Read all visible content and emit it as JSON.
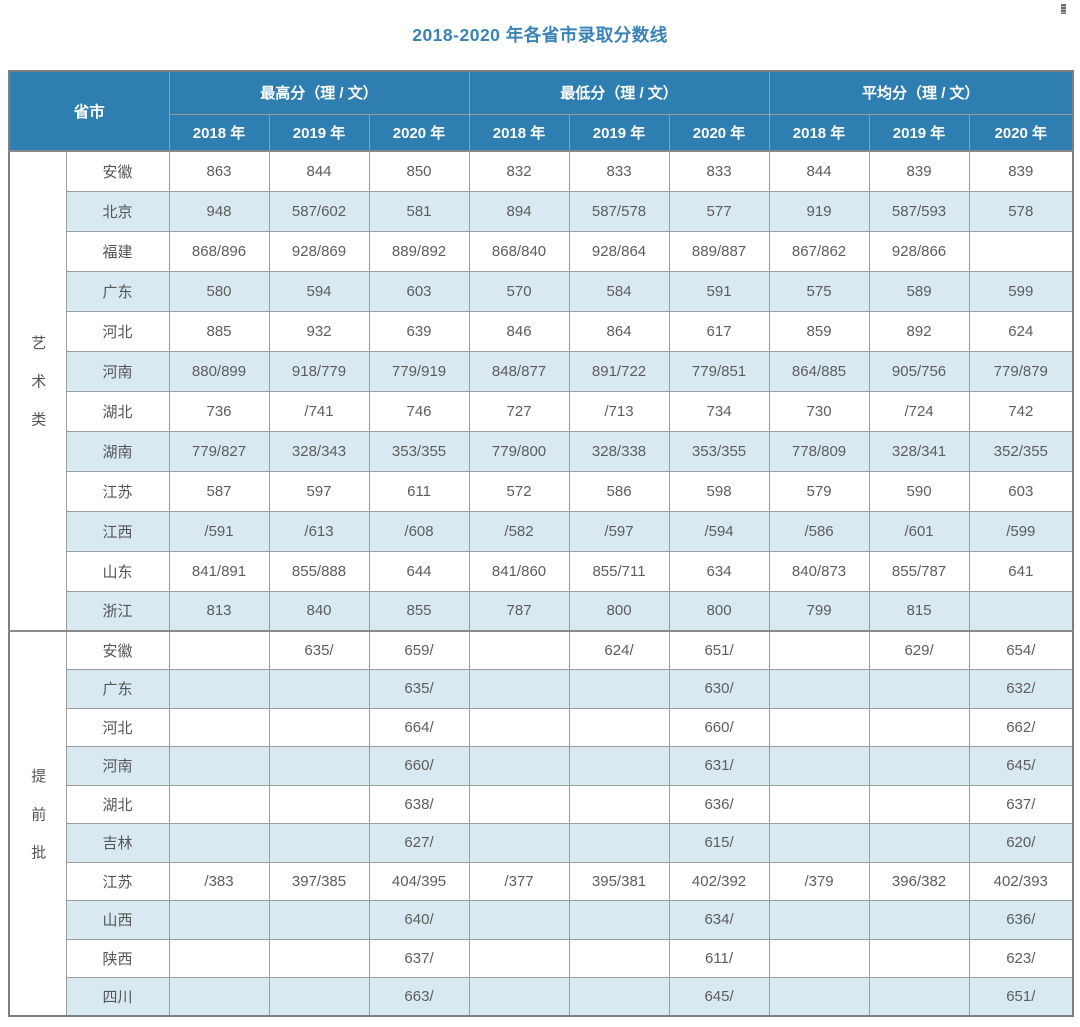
{
  "title": "2018-2020 年各省市录取分数线",
  "colors": {
    "header_bg": "#2e7eb1",
    "header_text": "#ffffff",
    "stripe_bg": "#d9e9f2",
    "grid_border": "#9c9c9c",
    "outer_border": "#7e7e7e",
    "title_text": "#3a83b6",
    "cell_text": "#5a5a5a"
  },
  "table": {
    "header": {
      "province_label": "省市",
      "groups": [
        {
          "label": "最高分（理 / 文）"
        },
        {
          "label": "最低分（理 / 文）"
        },
        {
          "label": "平均分（理 / 文）"
        }
      ],
      "years": [
        "2018 年",
        "2019 年",
        "2020 年"
      ]
    },
    "sections": [
      {
        "category": "艺术类",
        "rows": [
          {
            "province": "安徽",
            "values": [
              "863",
              "844",
              "850",
              "832",
              "833",
              "833",
              "844",
              "839",
              "839"
            ]
          },
          {
            "province": "北京",
            "values": [
              "948",
              "587/602",
              "581",
              "894",
              "587/578",
              "577",
              "919",
              "587/593",
              "578"
            ]
          },
          {
            "province": "福建",
            "values": [
              "868/896",
              "928/869",
              "889/892",
              "868/840",
              "928/864",
              "889/887",
              "867/862",
              "928/866",
              ""
            ]
          },
          {
            "province": "广东",
            "values": [
              "580",
              "594",
              "603",
              "570",
              "584",
              "591",
              "575",
              "589",
              "599"
            ]
          },
          {
            "province": "河北",
            "values": [
              "885",
              "932",
              "639",
              "846",
              "864",
              "617",
              "859",
              "892",
              "624"
            ]
          },
          {
            "province": "河南",
            "values": [
              "880/899",
              "918/779",
              "779/919",
              "848/877",
              "891/722",
              "779/851",
              "864/885",
              "905/756",
              "779/879"
            ]
          },
          {
            "province": "湖北",
            "values": [
              "736",
              "/741",
              "746",
              "727",
              "/713",
              "734",
              "730",
              "/724",
              "742"
            ]
          },
          {
            "province": "湖南",
            "values": [
              "779/827",
              "328/343",
              "353/355",
              "779/800",
              "328/338",
              "353/355",
              "778/809",
              "328/341",
              "352/355"
            ]
          },
          {
            "province": "江苏",
            "values": [
              "587",
              "597",
              "611",
              "572",
              "586",
              "598",
              "579",
              "590",
              "603"
            ]
          },
          {
            "province": "江西",
            "values": [
              "/591",
              "/613",
              "/608",
              "/582",
              "/597",
              "/594",
              "/586",
              "/601",
              "/599"
            ]
          },
          {
            "province": "山东",
            "values": [
              "841/891",
              "855/888",
              "644",
              "841/860",
              "855/711",
              "634",
              "840/873",
              "855/787",
              "641"
            ]
          },
          {
            "province": "浙江",
            "values": [
              "813",
              "840",
              "855",
              "787",
              "800",
              "800",
              "799",
              "815",
              ""
            ]
          }
        ]
      },
      {
        "category": "提前批",
        "rows": [
          {
            "province": "安徽",
            "values": [
              "",
              "635/",
              "659/",
              "",
              "624/",
              "651/",
              "",
              "629/",
              "654/"
            ]
          },
          {
            "province": "广东",
            "values": [
              "",
              "",
              "635/",
              "",
              "",
              "630/",
              "",
              "",
              "632/"
            ]
          },
          {
            "province": "河北",
            "values": [
              "",
              "",
              "664/",
              "",
              "",
              "660/",
              "",
              "",
              "662/"
            ]
          },
          {
            "province": "河南",
            "values": [
              "",
              "",
              "660/",
              "",
              "",
              "631/",
              "",
              "",
              "645/"
            ]
          },
          {
            "province": "湖北",
            "values": [
              "",
              "",
              "638/",
              "",
              "",
              "636/",
              "",
              "",
              "637/"
            ]
          },
          {
            "province": "吉林",
            "values": [
              "",
              "",
              "627/",
              "",
              "",
              "615/",
              "",
              "",
              "620/"
            ]
          },
          {
            "province": "江苏",
            "values": [
              "/383",
              "397/385",
              "404/395",
              "/377",
              "395/381",
              "402/392",
              "/379",
              "396/382",
              "402/393"
            ]
          },
          {
            "province": "山西",
            "values": [
              "",
              "",
              "640/",
              "",
              "",
              "634/",
              "",
              "",
              "636/"
            ]
          },
          {
            "province": "陕西",
            "values": [
              "",
              "",
              "637/",
              "",
              "",
              "611/",
              "",
              "",
              "623/"
            ]
          },
          {
            "province": "四川",
            "values": [
              "",
              "",
              "663/",
              "",
              "",
              "645/",
              "",
              "",
              "651/"
            ]
          }
        ]
      }
    ]
  }
}
